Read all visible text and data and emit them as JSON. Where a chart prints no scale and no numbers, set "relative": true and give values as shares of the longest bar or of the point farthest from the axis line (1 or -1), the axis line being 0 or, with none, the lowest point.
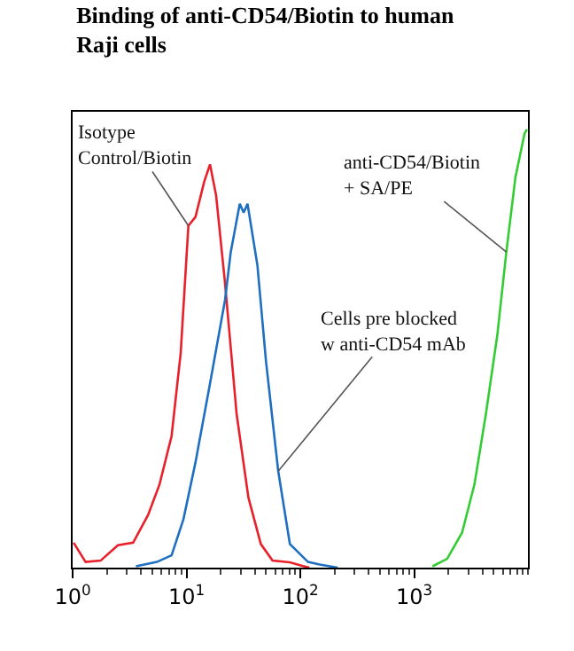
{
  "chart_data": {
    "type": "line",
    "title": "Binding of anti-CD54/Biotin to human\nRaji cells",
    "relative": true,
    "log": "x",
    "xlim": [
      1,
      10000
    ],
    "xticks": [
      {
        "value": 1,
        "label": "10$^{0}$"
      },
      {
        "value": 10,
        "label": "10$^{1}$"
      },
      {
        "value": 100,
        "label": "10$^{2}$"
      },
      {
        "value": 1000,
        "label": "10$^{3}$"
      }
    ],
    "grid": false,
    "marker": "none",
    "line_style": "solid",
    "series": [
      {
        "color": "#e8202a",
        "x": [
          1.02,
          1.3,
          1.76,
          2.5,
          3.4,
          4.6,
          5.8,
          7.4,
          8.9,
          10.4,
          12,
          14.3,
          16.1,
          18.2,
          21.8,
          27.6,
          35,
          45,
          57,
          81,
          104,
          120
        ],
        "values": [
          0.057,
          0.013,
          0.016,
          0.051,
          0.057,
          0.12,
          0.19,
          0.3,
          0.49,
          0.78,
          0.8,
          0.88,
          0.92,
          0.85,
          0.65,
          0.35,
          0.16,
          0.054,
          0.016,
          0.012,
          0.004,
          0
        ]
      },
      {
        "color": "#1f6fc0",
        "x": [
          3.6,
          5.5,
          7.4,
          9.4,
          12,
          16.1,
          21.8,
          24.5,
          29.4,
          31.8,
          34.4,
          42,
          50,
          64,
          81,
          117,
          148,
          213
        ],
        "values": [
          0.003,
          0.013,
          0.028,
          0.11,
          0.24,
          0.42,
          0.61,
          0.72,
          0.83,
          0.81,
          0.83,
          0.69,
          0.47,
          0.22,
          0.054,
          0.013,
          0.007,
          0
        ]
      },
      {
        "color": "#33cc33",
        "x": [
          1450,
          1950,
          2640,
          3390,
          4270,
          5380,
          6460,
          7760,
          9330,
          9800
        ],
        "values": [
          0.003,
          0.02,
          0.08,
          0.19,
          0.35,
          0.53,
          0.72,
          0.89,
          0.99,
          1
        ]
      }
    ],
    "annotations": [
      {
        "text": "Isotype\nControl/Biotin",
        "x": 10.4,
        "y": 0.78
      },
      {
        "text": "Cells pre blocked\nw anti-CD54 mAb",
        "x": 64,
        "y": 0.22
      },
      {
        "text": "anti-CD54/Biotin\n+ SA/PE",
        "x": 6460,
        "y": 0.72
      }
    ]
  }
}
